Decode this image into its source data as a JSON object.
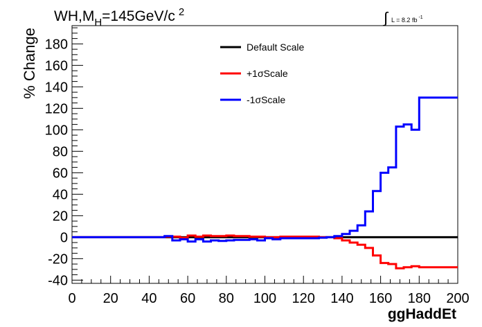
{
  "chart_data": {
    "type": "line",
    "title": "WH,M",
    "title_subscript": "H",
    "title_tail": "=145GeV/c",
    "title_superscript": "2",
    "lumi_text": "L = 8.2 fb",
    "lumi_superscript": "-1",
    "xlabel": "ggHaddEt",
    "ylabel": "% Change",
    "xlim": [
      0,
      200
    ],
    "ylim": [
      -43,
      197
    ],
    "x_ticks": [
      0,
      20,
      40,
      60,
      80,
      100,
      120,
      140,
      160,
      180,
      200
    ],
    "y_ticks": [
      -40,
      -20,
      0,
      20,
      40,
      60,
      80,
      100,
      120,
      140,
      160,
      180
    ],
    "legend_position": "top-center",
    "series": [
      {
        "name": "Default Scale",
        "color": "#000000",
        "steps": [
          [
            0,
            200,
            0
          ]
        ]
      },
      {
        "name": "+1σScale",
        "color": "#ff0000",
        "steps": [
          [
            0,
            48,
            0
          ],
          [
            48,
            56,
            0.5
          ],
          [
            56,
            60,
            -0.5
          ],
          [
            60,
            64,
            1.5
          ],
          [
            64,
            68,
            0.5
          ],
          [
            68,
            72,
            1.5
          ],
          [
            72,
            80,
            1
          ],
          [
            80,
            84,
            1.5
          ],
          [
            84,
            92,
            1
          ],
          [
            92,
            100,
            0.5
          ],
          [
            100,
            108,
            0
          ],
          [
            108,
            128,
            0.5
          ],
          [
            128,
            136,
            0
          ],
          [
            136,
            140,
            -1
          ],
          [
            140,
            144,
            -3
          ],
          [
            144,
            148,
            -5
          ],
          [
            148,
            152,
            -7
          ],
          [
            152,
            156,
            -10
          ],
          [
            156,
            160,
            -17
          ],
          [
            160,
            164,
            -24
          ],
          [
            164,
            168,
            -25
          ],
          [
            168,
            172,
            -29
          ],
          [
            172,
            176,
            -28
          ],
          [
            176,
            180,
            -27
          ],
          [
            180,
            200,
            -28
          ]
        ]
      },
      {
        "name": "-1σScale",
        "color": "#0000ff",
        "steps": [
          [
            0,
            48,
            0
          ],
          [
            48,
            52,
            1
          ],
          [
            52,
            56,
            -3
          ],
          [
            56,
            60,
            -2
          ],
          [
            60,
            64,
            -4
          ],
          [
            64,
            68,
            -2
          ],
          [
            68,
            72,
            -4
          ],
          [
            72,
            76,
            -3
          ],
          [
            76,
            80,
            -3.5
          ],
          [
            80,
            84,
            -3
          ],
          [
            84,
            92,
            -2.5
          ],
          [
            92,
            96,
            -2
          ],
          [
            96,
            100,
            -3
          ],
          [
            100,
            104,
            -1
          ],
          [
            104,
            108,
            -2
          ],
          [
            108,
            112,
            -1
          ],
          [
            112,
            128,
            -1
          ],
          [
            128,
            132,
            -0.5
          ],
          [
            132,
            136,
            0
          ],
          [
            136,
            140,
            1
          ],
          [
            140,
            144,
            3
          ],
          [
            144,
            148,
            6
          ],
          [
            148,
            152,
            11
          ],
          [
            152,
            156,
            24
          ],
          [
            156,
            160,
            43
          ],
          [
            160,
            164,
            60
          ],
          [
            164,
            168,
            65
          ],
          [
            168,
            172,
            103
          ],
          [
            172,
            176,
            105
          ],
          [
            176,
            180,
            100
          ],
          [
            180,
            200,
            130
          ]
        ]
      }
    ]
  }
}
